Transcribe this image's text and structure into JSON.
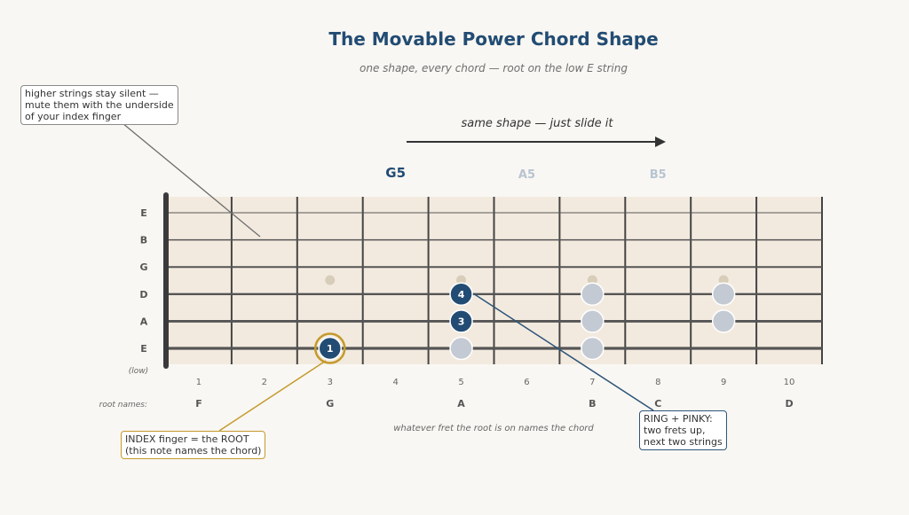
{
  "title": "The Movable Power Chord Shape",
  "subtitle": "one shape, every chord — root on the low E string",
  "slide_label": "same shape — just slide it",
  "chords": [
    {
      "name": "G5",
      "root_fret": 3,
      "active": true
    },
    {
      "name": "A5",
      "root_fret": 5,
      "active": false
    },
    {
      "name": "B5",
      "root_fret": 7,
      "active": false
    }
  ],
  "strings": [
    "E",
    "B",
    "G",
    "D",
    "A",
    "E"
  ],
  "low_label": "(low)",
  "fret_numbers": [
    "1",
    "2",
    "3",
    "4",
    "5",
    "6",
    "7",
    "8",
    "9",
    "10"
  ],
  "inlay_frets": [
    3,
    5,
    7,
    9
  ],
  "root_names_label": "root names:",
  "root_names": [
    {
      "fret": 1,
      "name": "F"
    },
    {
      "fret": 3,
      "name": "G",
      "highlight": true
    },
    {
      "fret": 5,
      "name": "A"
    },
    {
      "fret": 7,
      "name": "B"
    },
    {
      "fret": 8,
      "name": "C"
    },
    {
      "fret": 10,
      "name": "D"
    }
  ],
  "active_notes": [
    {
      "string": 5,
      "fret": 3,
      "finger": "1",
      "root": true
    },
    {
      "string": 4,
      "fret": 5,
      "finger": "3"
    },
    {
      "string": 3,
      "fret": 5,
      "finger": "4"
    }
  ],
  "ghost_notes": [
    {
      "string": 5,
      "fret": 5
    },
    {
      "string": 3,
      "fret": 7
    },
    {
      "string": 4,
      "fret": 7
    },
    {
      "string": 5,
      "fret": 7
    },
    {
      "string": 3,
      "fret": 9
    },
    {
      "string": 4,
      "fret": 9
    }
  ],
  "bottom_note": "whatever fret the root is on names the chord",
  "callouts": {
    "mute": [
      "higher strings stay silent —",
      "mute them with the underside",
      "of your index finger"
    ],
    "index": [
      "INDEX finger = the ROOT",
      "(this note names the chord)"
    ],
    "ring": [
      "RING + PINKY:",
      "two frets up,",
      "next two strings"
    ]
  },
  "colors": {
    "accent": "#224c73",
    "root_gold": "#c49a2c",
    "ghost": "#c4cad3",
    "fretboard": "#f3eadf",
    "inactive_chord": "#b8c4d2",
    "string": "#555555"
  }
}
